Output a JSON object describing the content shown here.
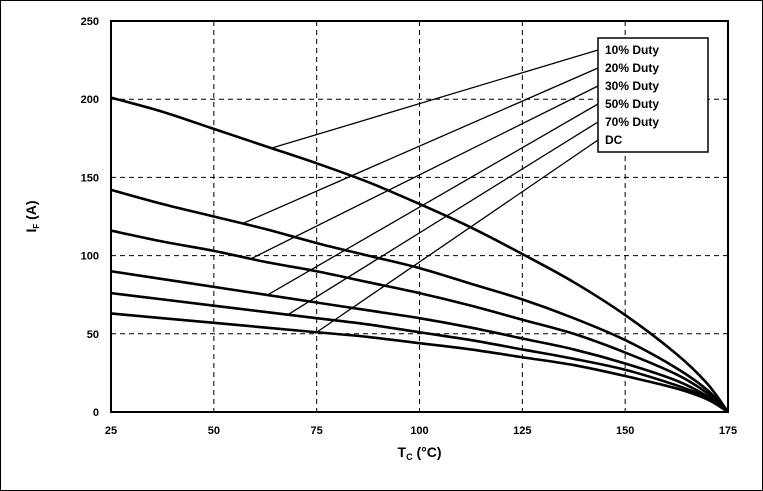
{
  "chart_data": {
    "type": "line",
    "xlabel_main": "T",
    "xlabel_sub": "C",
    "xlabel_unit": " (°C)",
    "ylabel_main": "I",
    "ylabel_sub": "F",
    "ylabel_unit": " (A)",
    "xlim": [
      25,
      175
    ],
    "ylim": [
      0,
      250
    ],
    "x_ticks": [
      25,
      50,
      75,
      100,
      125,
      150,
      175
    ],
    "y_ticks": [
      0,
      50,
      100,
      150,
      200,
      250
    ],
    "grid": true,
    "legend_position": "top-right",
    "line_color": "#000000",
    "x": [
      25,
      37.5,
      50,
      62.5,
      75,
      87.5,
      100,
      112.5,
      125,
      137.5,
      150,
      162.5,
      170,
      175
    ],
    "series": [
      {
        "name": "10% Duty",
        "values": [
          201,
          192,
          181,
          170,
          159,
          147,
          133,
          118,
          101,
          83,
          62,
          37,
          18,
          0
        ]
      },
      {
        "name": "20% Duty",
        "values": [
          142,
          133,
          125,
          117,
          108,
          100,
          92,
          82,
          72,
          60,
          46,
          28,
          14,
          0
        ]
      },
      {
        "name": "30% Duty",
        "values": [
          116,
          109,
          103,
          96,
          90,
          83,
          76,
          68,
          59,
          50,
          38,
          24,
          12,
          0
        ]
      },
      {
        "name": "50% Duty",
        "values": [
          90,
          85,
          80,
          75,
          70,
          65,
          60,
          54,
          47,
          40,
          31,
          20,
          10,
          0
        ]
      },
      {
        "name": "70% Duty",
        "values": [
          76,
          72,
          68,
          64,
          60,
          56,
          51,
          46,
          40,
          34,
          27,
          17,
          9,
          0
        ]
      },
      {
        "name": "DC",
        "values": [
          63,
          60,
          57,
          54,
          51,
          48,
          44,
          40,
          35,
          30,
          23,
          15,
          8,
          0
        ]
      }
    ],
    "leader_anchor_x": [
      64,
      57,
      59,
      63,
      68,
      75
    ]
  }
}
